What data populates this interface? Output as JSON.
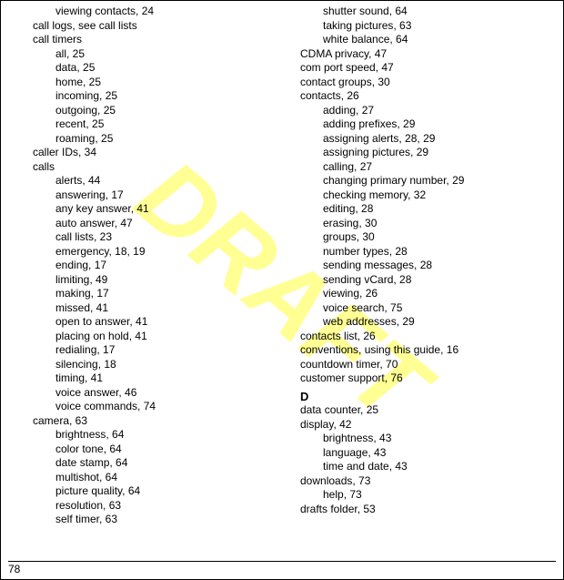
{
  "watermark": "DRAFT",
  "pageNumber": "78",
  "leftColumn": [
    {
      "text": "viewing contacts, 24",
      "indent": 1
    },
    {
      "text": "call logs, see call lists",
      "indent": 0
    },
    {
      "text": "call timers",
      "indent": 0
    },
    {
      "text": "all, 25",
      "indent": 1
    },
    {
      "text": "data, 25",
      "indent": 1
    },
    {
      "text": "home, 25",
      "indent": 1
    },
    {
      "text": "incoming, 25",
      "indent": 1
    },
    {
      "text": "outgoing, 25",
      "indent": 1
    },
    {
      "text": "recent, 25",
      "indent": 1
    },
    {
      "text": "roaming, 25",
      "indent": 1
    },
    {
      "text": "caller IDs, 34",
      "indent": 0
    },
    {
      "text": "calls",
      "indent": 0
    },
    {
      "text": "alerts, 44",
      "indent": 1
    },
    {
      "text": "answering, 17",
      "indent": 1
    },
    {
      "text": "any key answer, 41",
      "indent": 1
    },
    {
      "text": "auto answer, 47",
      "indent": 1
    },
    {
      "text": "call lists, 23",
      "indent": 1
    },
    {
      "text": "emergency, 18, 19",
      "indent": 1
    },
    {
      "text": "ending, 17",
      "indent": 1
    },
    {
      "text": "limiting, 49",
      "indent": 1
    },
    {
      "text": "making, 17",
      "indent": 1
    },
    {
      "text": "missed, 41",
      "indent": 1
    },
    {
      "text": "open to answer, 41",
      "indent": 1
    },
    {
      "text": "placing on hold, 41",
      "indent": 1
    },
    {
      "text": "redialing, 17",
      "indent": 1
    },
    {
      "text": "silencing, 18",
      "indent": 1
    },
    {
      "text": "timing, 41",
      "indent": 1
    },
    {
      "text": "voice answer, 46",
      "indent": 1
    },
    {
      "text": "voice commands, 74",
      "indent": 1
    },
    {
      "text": "camera, 63",
      "indent": 0
    },
    {
      "text": "brightness, 64",
      "indent": 1
    },
    {
      "text": "color tone, 64",
      "indent": 1
    },
    {
      "text": "date stamp, 64",
      "indent": 1
    },
    {
      "text": "multishot, 64",
      "indent": 1
    },
    {
      "text": "picture quality, 64",
      "indent": 1
    },
    {
      "text": "resolution, 63",
      "indent": 1
    },
    {
      "text": "self timer, 63",
      "indent": 1
    }
  ],
  "rightColumn": [
    {
      "text": "shutter sound, 64",
      "indent": 1
    },
    {
      "text": "taking pictures, 63",
      "indent": 1
    },
    {
      "text": "white balance, 64",
      "indent": 1
    },
    {
      "text": "CDMA privacy, 47",
      "indent": 0
    },
    {
      "text": "com port speed, 47",
      "indent": 0
    },
    {
      "text": "contact groups, 30",
      "indent": 0
    },
    {
      "text": "contacts, 26",
      "indent": 0
    },
    {
      "text": "adding, 27",
      "indent": 1
    },
    {
      "text": "adding prefixes, 29",
      "indent": 1
    },
    {
      "text": "assigning alerts, 28, 29",
      "indent": 1
    },
    {
      "text": "assigning pictures, 29",
      "indent": 1
    },
    {
      "text": "calling, 27",
      "indent": 1
    },
    {
      "text": "changing primary number, 29",
      "indent": 1
    },
    {
      "text": "checking memory, 32",
      "indent": 1
    },
    {
      "text": "editing, 28",
      "indent": 1
    },
    {
      "text": "erasing, 30",
      "indent": 1
    },
    {
      "text": "groups, 30",
      "indent": 1
    },
    {
      "text": "number types, 28",
      "indent": 1
    },
    {
      "text": "sending messages, 28",
      "indent": 1
    },
    {
      "text": "sending vCard, 28",
      "indent": 1
    },
    {
      "text": "viewing, 26",
      "indent": 1
    },
    {
      "text": "voice search, 75",
      "indent": 1
    },
    {
      "text": "web addresses, 29",
      "indent": 1
    },
    {
      "text": "contacts list, 26",
      "indent": 0
    },
    {
      "text": "conventions, using this guide, 16",
      "indent": 0
    },
    {
      "text": "countdown timer, 70",
      "indent": 0
    },
    {
      "text": "customer support, 76",
      "indent": 0
    },
    {
      "text": "D",
      "indent": 0,
      "section": true
    },
    {
      "text": "data counter, 25",
      "indent": 0
    },
    {
      "text": "display, 42",
      "indent": 0
    },
    {
      "text": "brightness, 43",
      "indent": 1
    },
    {
      "text": "language, 43",
      "indent": 1
    },
    {
      "text": "time and date, 43",
      "indent": 1
    },
    {
      "text": "downloads, 73",
      "indent": 0
    },
    {
      "text": "help, 73",
      "indent": 1
    },
    {
      "text": "drafts folder, 53",
      "indent": 0
    }
  ]
}
